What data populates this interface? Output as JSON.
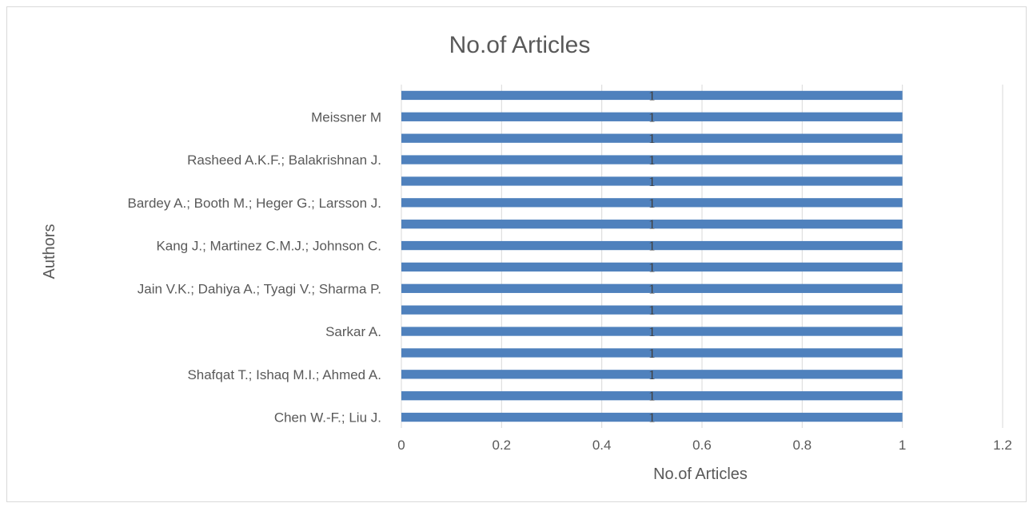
{
  "chart_data": {
    "type": "bar",
    "orientation": "horizontal",
    "title": "No.of Articles",
    "xlabel": "No.of Articles",
    "ylabel": "Authors",
    "xlim": [
      0,
      1.2
    ],
    "x_ticks": [
      "0",
      "0.2",
      "0.4",
      "0.6",
      "0.8",
      "1",
      "1.2"
    ],
    "grid": "vertical",
    "legend": "none",
    "bar_color": "#4f81bd",
    "categories": [
      "Chen W.-F.; Liu J.",
      "",
      "Shafqat T.; Ishaq M.I.; Ahmed A.",
      "",
      "Sarkar A.",
      "",
      "Jain V.K.; Dahiya A.; Tyagi V.; Sharma P.",
      "",
      "Kang J.; Martinez C.M.J.; Johnson C.",
      "",
      "Bardey A.; Booth M.; Heger G.; Larsson J.",
      "",
      "Rasheed A.K.F.; Balakrishnan J.",
      "",
      "Meissner M",
      ""
    ],
    "values": [
      1,
      1,
      1,
      1,
      1,
      1,
      1,
      1,
      1,
      1,
      1,
      1,
      1,
      1,
      1,
      1
    ],
    "data_labels": [
      "1",
      "1",
      "1",
      "1",
      "1",
      "1",
      "1",
      "1",
      "1",
      "1",
      "1",
      "1",
      "1",
      "1",
      "1",
      "1"
    ]
  }
}
